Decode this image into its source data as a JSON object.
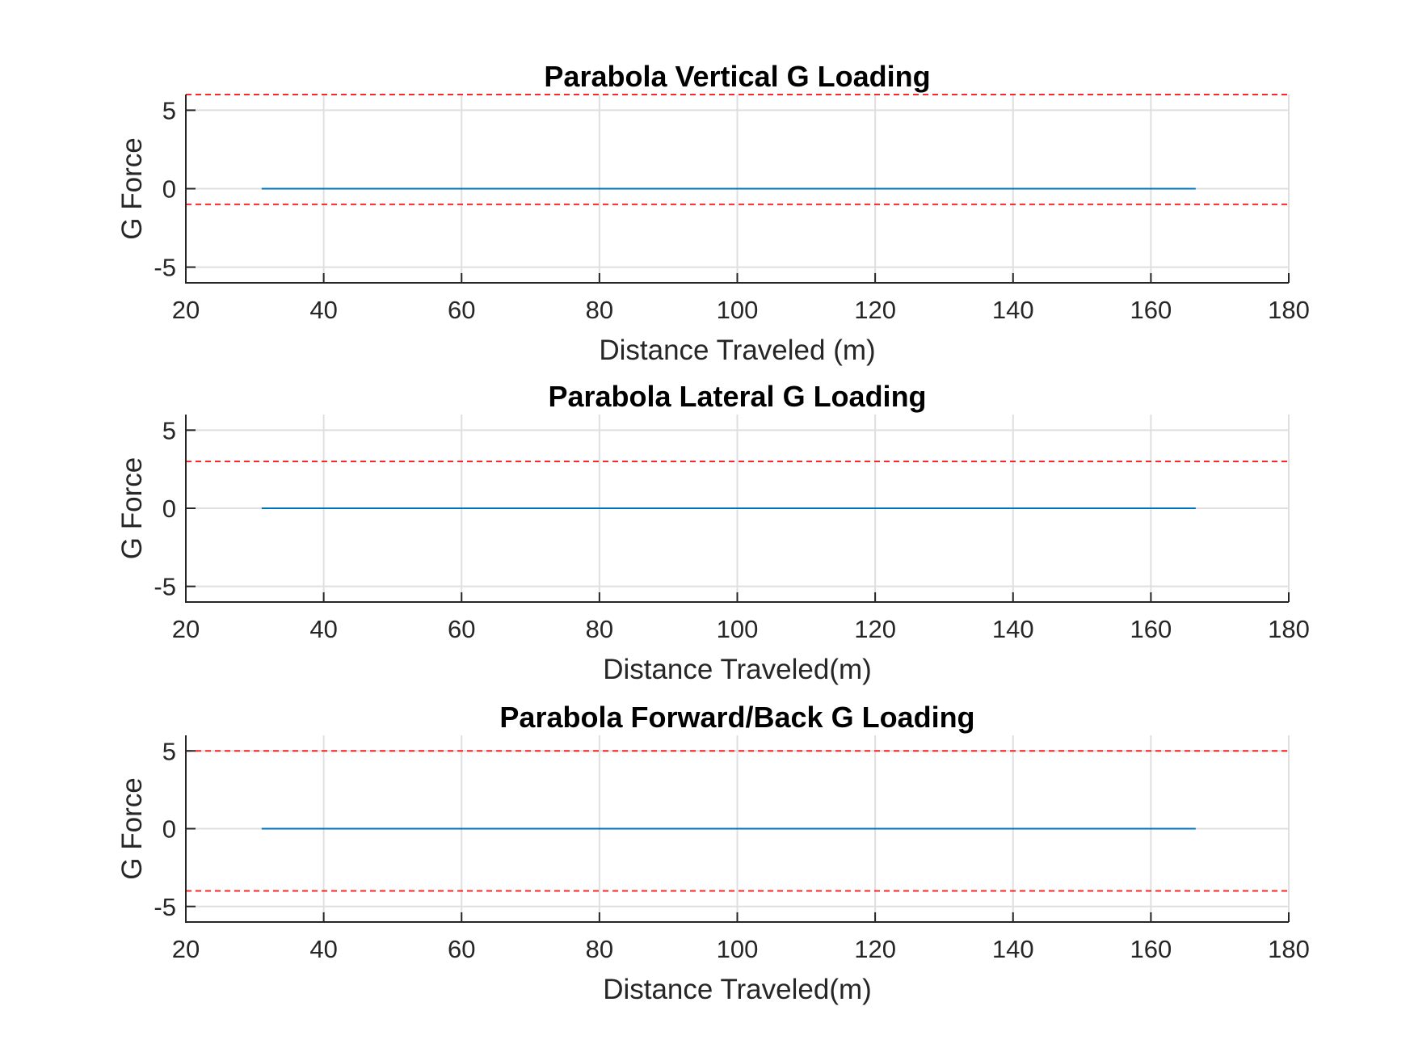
{
  "chart_data": [
    {
      "type": "line",
      "title": "Parabola Vertical G Loading",
      "xlabel": "Distance Traveled (m)",
      "ylabel": "G Force",
      "xlim": [
        20,
        180
      ],
      "ylim": [
        -6,
        6
      ],
      "xticks": [
        20,
        40,
        60,
        80,
        100,
        120,
        140,
        160,
        180
      ],
      "yticks": [
        -5,
        0,
        5
      ],
      "grid": true,
      "series": [
        {
          "x": [
            31,
            166.5
          ],
          "y": [
            0,
            0
          ],
          "color": "#0072BD",
          "style": "solid"
        }
      ],
      "limit_lines": [
        {
          "y": 6,
          "color": "#FF0000",
          "style": "dashed"
        },
        {
          "y": -1,
          "color": "#FF0000",
          "style": "dashed"
        }
      ]
    },
    {
      "type": "line",
      "title": "Parabola Lateral G Loading",
      "xlabel": "Distance Traveled(m)",
      "ylabel": "G Force",
      "xlim": [
        20,
        180
      ],
      "ylim": [
        -6,
        6
      ],
      "xticks": [
        20,
        40,
        60,
        80,
        100,
        120,
        140,
        160,
        180
      ],
      "yticks": [
        -5,
        0,
        5
      ],
      "grid": true,
      "series": [
        {
          "x": [
            31,
            166.5
          ],
          "y": [
            0,
            0
          ],
          "color": "#0072BD",
          "style": "solid"
        }
      ],
      "limit_lines": [
        {
          "y": 3,
          "color": "#FF0000",
          "style": "dashed"
        }
      ]
    },
    {
      "type": "line",
      "title": "Parabola Forward/Back G Loading",
      "xlabel": "Distance Traveled(m)",
      "ylabel": "G Force",
      "xlim": [
        20,
        180
      ],
      "ylim": [
        -6,
        6
      ],
      "xticks": [
        20,
        40,
        60,
        80,
        100,
        120,
        140,
        160,
        180
      ],
      "yticks": [
        -5,
        0,
        5
      ],
      "grid": true,
      "series": [
        {
          "x": [
            31,
            166.5
          ],
          "y": [
            0,
            0
          ],
          "color": "#0072BD",
          "style": "solid"
        }
      ],
      "limit_lines": [
        {
          "y": 5,
          "color": "#FF0000",
          "style": "dashed"
        },
        {
          "y": -4,
          "color": "#FF0000",
          "style": "dashed"
        }
      ]
    }
  ]
}
